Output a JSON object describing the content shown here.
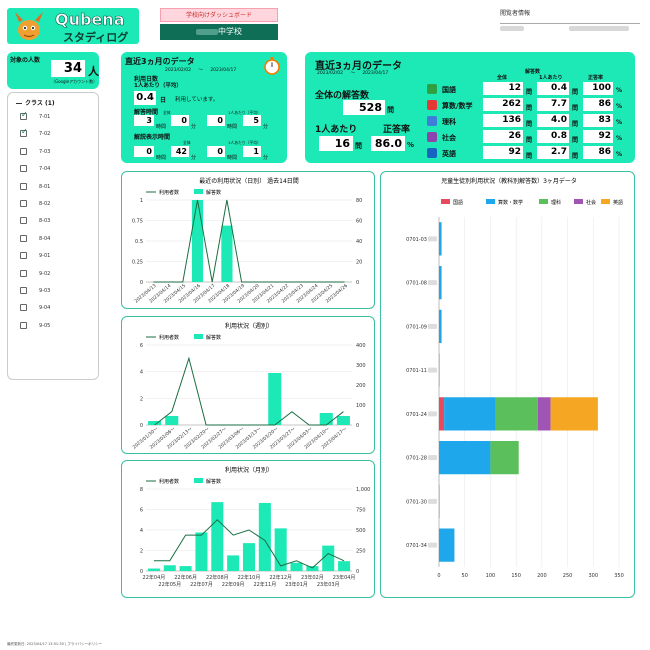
{
  "header": {
    "logo_main": "Qubena",
    "logo_sub": "スタディログ",
    "dashboard_badge": "学校向けダッシュボード",
    "school": "中学校",
    "viewer_label": "閲覧者情報"
  },
  "target": {
    "label": "対象の人数",
    "count": "34",
    "unit": "人",
    "note": "（Googleアカウント数）"
  },
  "classes": {
    "title": "クラス (1)",
    "items": [
      {
        "name": "7-01",
        "checked": true
      },
      {
        "name": "7-02",
        "checked": true
      },
      {
        "name": "7-03",
        "checked": false
      },
      {
        "name": "7-04",
        "checked": false
      },
      {
        "name": "8-01",
        "checked": false
      },
      {
        "name": "8-02",
        "checked": false
      },
      {
        "name": "8-03",
        "checked": false
      },
      {
        "name": "8-04",
        "checked": false
      },
      {
        "name": "9-01",
        "checked": false
      },
      {
        "name": "9-02",
        "checked": false
      },
      {
        "name": "9-03",
        "checked": false
      },
      {
        "name": "9-04",
        "checked": false
      },
      {
        "name": "9-05",
        "checked": false
      }
    ]
  },
  "card1": {
    "title": "直近3ヵ月のデータ",
    "range_start": "2023/02/02",
    "tilde": "〜",
    "range_end": "2023/04/17",
    "days_label": "利用日数",
    "per_person": "1人あたり（平均）",
    "days_value": "0.4",
    "days_unit": "日",
    "days_suffix": "利用しています。",
    "answer_time_label": "解答時間",
    "explain_time_label": "解説表示時間",
    "total_label": "全体",
    "per_person_avg": "1人あたり（平均）",
    "hours": "時間",
    "minutes": "分",
    "answer_total_h": "3",
    "answer_total_m": "0",
    "answer_avg_h": "0",
    "answer_avg_m": "5",
    "explain_total_h": "0",
    "explain_total_m": "42",
    "explain_avg_h": "0",
    "explain_avg_m": "1"
  },
  "card2": {
    "title": "直近3ヵ月のデータ",
    "range_start": "2023/02/02",
    "tilde": "〜",
    "range_end": "2023/04/17",
    "answers_label": "解答数",
    "total_answers_label": "全体の解答数",
    "total_answers": "528",
    "mon": "問",
    "per_person_label": "1人あたり",
    "accuracy_label": "正答率",
    "per_person_answers": "16",
    "accuracy": "86.0",
    "pct": "%",
    "col_total": "全体",
    "col_avg": "1人あたり",
    "col_acc": "正答率",
    "subjects": [
      {
        "name": "国語",
        "total": "12",
        "avg": "0.4",
        "acc": "100",
        "icon": "book-icon",
        "color": "#2ea043"
      },
      {
        "name": "算数/数学",
        "total": "262",
        "avg": "7.7",
        "acc": "86",
        "icon": "chart-icon",
        "color": "#e53935"
      },
      {
        "name": "理科",
        "total": "136",
        "avg": "4.0",
        "acc": "83",
        "icon": "flask-icon",
        "color": "#3e7ed8"
      },
      {
        "name": "社会",
        "total": "26",
        "avg": "0.8",
        "acc": "92",
        "icon": "globe-icon",
        "color": "#8e44ad"
      },
      {
        "name": "英語",
        "total": "92",
        "avg": "2.7",
        "acc": "86",
        "icon": "abc-icon",
        "color": "#1565c0"
      }
    ]
  },
  "footer": {
    "text": "最終更新日: 2023/04/17 13:51:30 | プライバシーポリシー"
  },
  "chart_data": [
    {
      "type": "bar",
      "title": "最近の利用状況（日別） 過去14日間",
      "legend": [
        "利用者数",
        "解答数"
      ],
      "categories": [
        "2023/04/13",
        "2023/04/14",
        "2023/04/15",
        "2023/04/16",
        "2023/04/17",
        "2023/04/18",
        "2023/04/19",
        "2023/04/20",
        "2023/04/21",
        "2023/04/22",
        "2023/04/23",
        "2023/04/24",
        "2023/04/25",
        "2023/04/26"
      ],
      "line_series": {
        "name": "利用者数",
        "values": [
          0,
          0,
          0,
          1,
          0,
          1,
          0,
          0,
          0,
          0,
          0,
          0,
          0,
          0
        ]
      },
      "bar_series": {
        "name": "解答数",
        "values": [
          0,
          0,
          0,
          80,
          0,
          55,
          0,
          0,
          0,
          0,
          0,
          0,
          0,
          0
        ]
      },
      "ylim_left": [
        0,
        1
      ],
      "yticks_left": [
        "0",
        "0.25",
        "0.5",
        "0.75",
        "1"
      ],
      "ylim_right": [
        0,
        80
      ],
      "yticks_right": [
        "0",
        "20",
        "40",
        "60",
        "80"
      ]
    },
    {
      "type": "bar",
      "title": "利用状況（週別）",
      "legend": [
        "利用者数",
        "解答数"
      ],
      "categories": [
        "2023/01/30〜",
        "2023/02/06〜",
        "2023/02/13〜",
        "2023/02/20〜",
        "2023/02/27〜",
        "2023/03/06〜",
        "2023/03/13〜",
        "2023/03/20〜",
        "2023/03/27〜",
        "2023/04/03〜",
        "2023/04/10〜",
        "2023/04/17〜"
      ],
      "line_series": {
        "name": "利用者数",
        "values": [
          0,
          1,
          5,
          0,
          0,
          0,
          0,
          0,
          1,
          0,
          0,
          1
        ]
      },
      "bar_series": {
        "name": "解答数",
        "values": [
          20,
          45,
          0,
          0,
          0,
          0,
          0,
          260,
          0,
          0,
          60,
          45
        ]
      },
      "ylim_left": [
        0,
        6
      ],
      "yticks_left": [
        "0",
        "2",
        "4",
        "6"
      ],
      "ylim_right": [
        0,
        400
      ],
      "yticks_right": [
        "0",
        "100",
        "200",
        "300",
        "400"
      ]
    },
    {
      "type": "bar",
      "title": "利用状況（月別）",
      "legend": [
        "利用者数",
        "解答数"
      ],
      "categories": [
        "22年04月",
        "22年05月",
        "22年06月",
        "22年07月",
        "22年08月",
        "22年09月",
        "22年10月",
        "22年11月",
        "22年12月",
        "23年01月",
        "23年02月",
        "23年03月",
        "23年04月"
      ],
      "tick_labels_top": [
        "22年04月",
        "22年06月",
        "22年08月",
        "22年10月",
        "22年12月",
        "23年03月"
      ],
      "tick_labels_bottom": [
        "22年05月",
        "22年07月",
        "22年09月",
        "22年11月",
        "23年02月",
        "23年04月"
      ],
      "line_series": {
        "name": "利用者数",
        "values": [
          1,
          1,
          3.5,
          3.5,
          5,
          3.5,
          4,
          3,
          0.5,
          1,
          0.3,
          1.7,
          1
        ]
      },
      "bar_series": {
        "name": "解答数",
        "values": [
          30,
          70,
          60,
          470,
          840,
          190,
          340,
          830,
          520,
          100,
          60,
          310,
          120
        ]
      },
      "ylim_left": [
        0,
        8
      ],
      "yticks_left": [
        "0",
        "2",
        "4",
        "6",
        "8"
      ],
      "ylim_right": [
        0,
        1000
      ],
      "yticks_right": [
        "0",
        "250",
        "500",
        "750",
        "1,000"
      ]
    },
    {
      "type": "bar",
      "orientation": "horizontal",
      "stacked": true,
      "title": "児童生徒別利用状況（教科別解答数）3ヶ月データ",
      "series_names": [
        "国語",
        "算数・数学",
        "理科",
        "社会",
        "英語"
      ],
      "colors": [
        "#e64a5b",
        "#1ea7ea",
        "#5bc05b",
        "#a055b5",
        "#f5a623"
      ],
      "categories": [
        "0701-03",
        "0701-08",
        "0701-09",
        "0701-11",
        "0701-24",
        "0701-28",
        "0701-30",
        "0701-34"
      ],
      "values": [
        [
          0,
          5,
          0,
          0,
          0
        ],
        [
          0,
          5,
          0,
          0,
          0
        ],
        [
          0,
          5,
          0,
          0,
          0
        ],
        [
          0,
          1,
          0,
          0,
          0
        ],
        [
          10,
          100,
          82,
          25,
          92
        ],
        [
          0,
          100,
          55,
          0,
          0
        ],
        [
          0,
          1,
          0,
          0,
          0
        ],
        [
          0,
          30,
          0,
          0,
          0
        ]
      ],
      "xlim": [
        0,
        350
      ],
      "xticks": [
        "0",
        "50",
        "100",
        "150",
        "200",
        "250",
        "300",
        "350"
      ]
    }
  ]
}
